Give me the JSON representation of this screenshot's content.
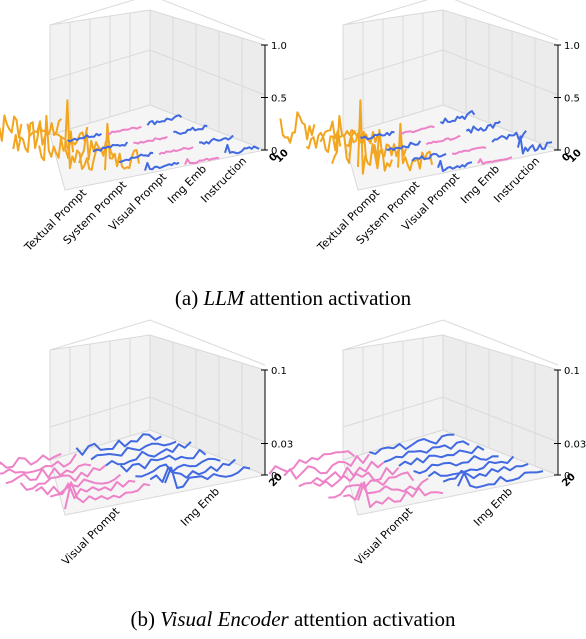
{
  "captions": {
    "a_prefix": "(a) ",
    "a_italic": "LLM",
    "a_suffix": " attention activation",
    "b_prefix": "(b) ",
    "b_italic": "Visual Encoder",
    "b_suffix": " attention activation"
  },
  "colors": {
    "Textual Prompt": "#f2a51f",
    "System Prompt": "#f2a51f",
    "Visual Prompt": "#4169e1",
    "Img Emb": "#ee82c8",
    "Instruction": "#4169e1",
    "vis_visual_prompt": "#ee82c8",
    "vis_img_emb": "#4169e1"
  },
  "chart_data": [
    {
      "id": "llm-left",
      "type": "3d-line",
      "categories": [
        "Textual Prompt",
        "System Prompt",
        "Visual Prompt",
        "Img Emb",
        "Instruction"
      ],
      "depth_ticks": [
        "0",
        "10"
      ],
      "z_ticks": [
        "0",
        "0.5",
        "1.0"
      ],
      "zlim": [
        0,
        1.0
      ],
      "peaks": [
        0.85,
        0.55,
        0.1,
        0.06,
        0.12
      ]
    },
    {
      "id": "llm-right",
      "type": "3d-line",
      "categories": [
        "Textual Prompt",
        "System Prompt",
        "Visual Prompt",
        "Img Emb",
        "Instruction"
      ],
      "depth_ticks": [
        "0",
        "10"
      ],
      "z_ticks": [
        "0",
        "0.5",
        "1.0"
      ],
      "zlim": [
        0,
        1.0
      ],
      "peaks": [
        0.85,
        0.55,
        0.12,
        0.06,
        0.2
      ]
    },
    {
      "id": "venc-left",
      "type": "3d-line",
      "categories": [
        "Visual Prompt",
        "Img Emb"
      ],
      "depth_ticks": [
        "20"
      ],
      "z_ticks": [
        "0",
        "0.03",
        "0.1"
      ],
      "zlim": [
        0,
        0.1
      ],
      "peaks": [
        0.03,
        0.025
      ]
    },
    {
      "id": "venc-right",
      "type": "3d-line",
      "categories": [
        "Visual Prompt",
        "Img Emb"
      ],
      "depth_ticks": [
        "20"
      ],
      "z_ticks": [
        "0",
        "0.03",
        "0.1"
      ],
      "zlim": [
        0,
        0.1
      ],
      "peaks": [
        0.03,
        0.02
      ]
    }
  ]
}
